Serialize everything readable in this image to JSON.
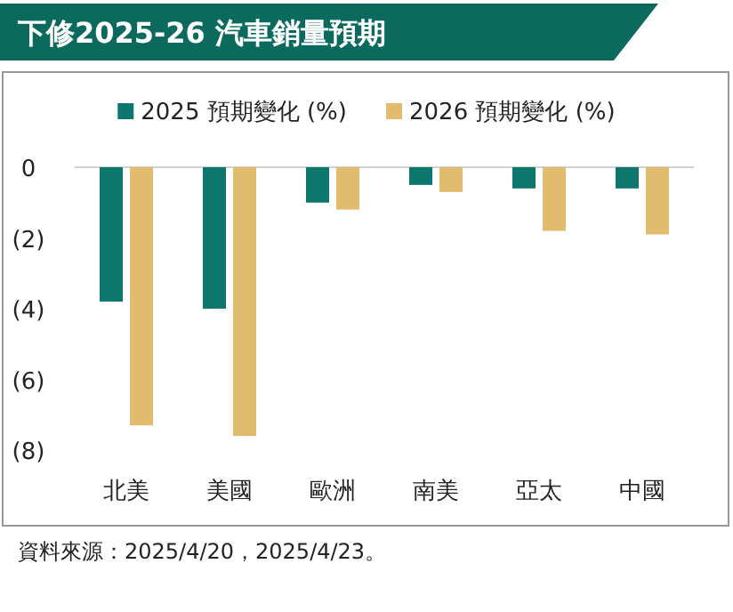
{
  "chart_data": {
    "type": "bar",
    "title": "下修2025-26 汽車銷量預期",
    "categories": [
      "北美",
      "美國",
      "歐洲",
      "南美",
      "亞太",
      "中國"
    ],
    "series": [
      {
        "name": "2025 預期變化 (%)",
        "color": "#0e776d",
        "values": [
          -3.8,
          -4.0,
          -1.0,
          -0.5,
          -0.6,
          -0.6
        ]
      },
      {
        "name": "2026 預期變化 (%)",
        "color": "#e2bc6e",
        "values": [
          -7.3,
          -7.6,
          -1.2,
          -0.7,
          -1.8,
          -1.9
        ]
      }
    ],
    "ylim": [
      -8,
      0
    ],
    "yticks": [
      0,
      {
        "value": -2,
        "label": "(2)"
      },
      {
        "value": -4,
        "label": "(4)"
      },
      {
        "value": -6,
        "label": "(6)"
      },
      {
        "value": -8,
        "label": "(8)"
      }
    ],
    "legend": "top",
    "annotations": [
      "資料來源：2025/4/20，2025/4/23。"
    ]
  }
}
